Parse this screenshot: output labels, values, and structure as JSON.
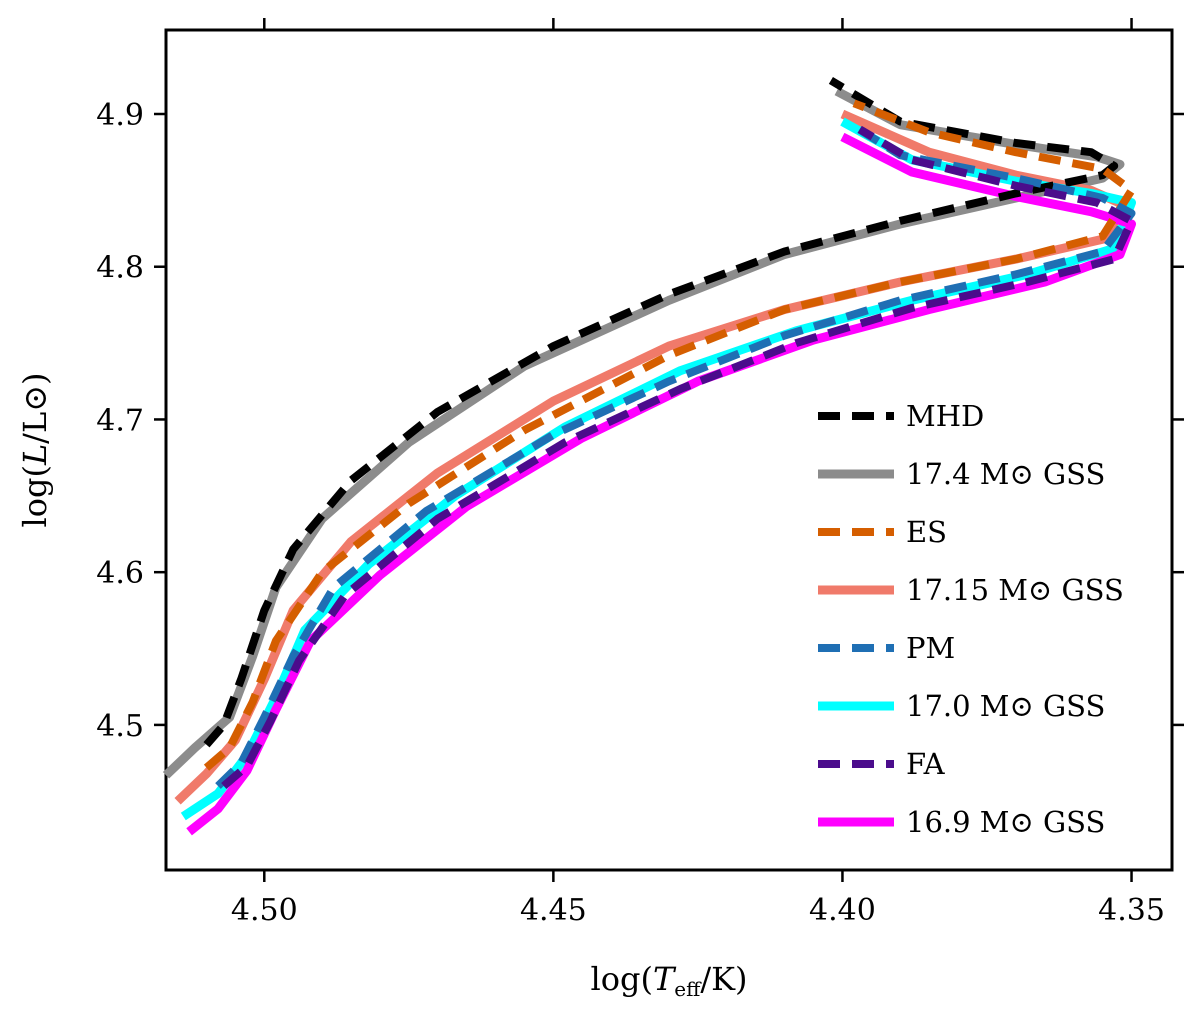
{
  "chart_data": {
    "type": "line",
    "title": "",
    "xlabel_prefix": "log(",
    "xlabel_var": "T",
    "xlabel_sub": "eff",
    "xlabel_suffix": "/K)",
    "ylabel_prefix": "log(",
    "ylabel_var": "L",
    "ylabel_suffix": "/L⊙)",
    "xlim": [
      4.517,
      4.343
    ],
    "ylim": [
      4.405,
      4.955
    ],
    "x_inverted": true,
    "x_ticks": [
      4.5,
      4.45,
      4.4,
      4.35
    ],
    "x_tick_labels": [
      "4.50",
      "4.45",
      "4.40",
      "4.35"
    ],
    "y_ticks": [
      4.5,
      4.6,
      4.7,
      4.8,
      4.9
    ],
    "y_tick_labels": [
      "4.5",
      "4.6",
      "4.7",
      "4.8",
      "4.9"
    ],
    "legend_position": "lower-right",
    "series": [
      {
        "name": "MHD",
        "color": "#000000",
        "style": "dashed",
        "points": [
          [
            4.51,
            4.487
          ],
          [
            4.507,
            4.5
          ],
          [
            4.504,
            4.53
          ],
          [
            4.5,
            4.575
          ],
          [
            4.495,
            4.615
          ],
          [
            4.485,
            4.66
          ],
          [
            4.47,
            4.705
          ],
          [
            4.45,
            4.748
          ],
          [
            4.43,
            4.782
          ],
          [
            4.41,
            4.81
          ],
          [
            4.39,
            4.83
          ],
          [
            4.37,
            4.848
          ],
          [
            4.355,
            4.86
          ],
          [
            4.353,
            4.866
          ],
          [
            4.357,
            4.875
          ],
          [
            4.37,
            4.881
          ],
          [
            4.39,
            4.895
          ],
          [
            4.402,
            4.922
          ]
        ]
      },
      {
        "name": "17.4 M⊙ GSS",
        "color": "#8c8c8c",
        "style": "solid",
        "points": [
          [
            4.517,
            4.467
          ],
          [
            4.512,
            4.485
          ],
          [
            4.506,
            4.505
          ],
          [
            4.502,
            4.545
          ],
          [
            4.498,
            4.59
          ],
          [
            4.49,
            4.635
          ],
          [
            4.475,
            4.685
          ],
          [
            4.455,
            4.735
          ],
          [
            4.43,
            4.778
          ],
          [
            4.41,
            4.808
          ],
          [
            4.39,
            4.828
          ],
          [
            4.37,
            4.845
          ],
          [
            4.355,
            4.858
          ],
          [
            4.352,
            4.867
          ],
          [
            4.356,
            4.872
          ],
          [
            4.37,
            4.88
          ],
          [
            4.39,
            4.893
          ],
          [
            4.401,
            4.915
          ]
        ]
      },
      {
        "name": "ES",
        "color": "#d55e00",
        "style": "dashed",
        "points": [
          [
            4.51,
            4.472
          ],
          [
            4.506,
            4.485
          ],
          [
            4.502,
            4.515
          ],
          [
            4.498,
            4.555
          ],
          [
            4.49,
            4.6
          ],
          [
            4.475,
            4.645
          ],
          [
            4.455,
            4.693
          ],
          [
            4.43,
            4.742
          ],
          [
            4.41,
            4.772
          ],
          [
            4.39,
            4.79
          ],
          [
            4.37,
            4.805
          ],
          [
            4.355,
            4.82
          ],
          [
            4.35,
            4.85
          ],
          [
            4.355,
            4.864
          ],
          [
            4.37,
            4.875
          ],
          [
            4.385,
            4.888
          ],
          [
            4.398,
            4.907
          ]
        ]
      },
      {
        "name": "17.15 M⊙ GSS",
        "color": "#f07a6a",
        "style": "solid",
        "points": [
          [
            4.515,
            4.45
          ],
          [
            4.51,
            4.468
          ],
          [
            4.505,
            4.49
          ],
          [
            4.5,
            4.53
          ],
          [
            4.495,
            4.575
          ],
          [
            4.485,
            4.62
          ],
          [
            4.47,
            4.665
          ],
          [
            4.45,
            4.712
          ],
          [
            4.43,
            4.748
          ],
          [
            4.41,
            4.772
          ],
          [
            4.39,
            4.79
          ],
          [
            4.37,
            4.805
          ],
          [
            4.355,
            4.818
          ],
          [
            4.351,
            4.84
          ],
          [
            4.357,
            4.85
          ],
          [
            4.37,
            4.86
          ],
          [
            4.385,
            4.875
          ],
          [
            4.4,
            4.9
          ]
        ]
      },
      {
        "name": "PM",
        "color": "#1f6fb4",
        "style": "dashed",
        "points": [
          [
            4.508,
            4.46
          ],
          [
            4.504,
            4.475
          ],
          [
            4.5,
            4.505
          ],
          [
            4.495,
            4.545
          ],
          [
            4.488,
            4.59
          ],
          [
            4.472,
            4.64
          ],
          [
            4.45,
            4.69
          ],
          [
            4.43,
            4.725
          ],
          [
            4.41,
            4.755
          ],
          [
            4.39,
            4.778
          ],
          [
            4.37,
            4.795
          ],
          [
            4.355,
            4.81
          ],
          [
            4.35,
            4.835
          ],
          [
            4.355,
            4.845
          ],
          [
            4.37,
            4.858
          ],
          [
            4.39,
            4.873
          ],
          [
            4.398,
            4.892
          ]
        ]
      },
      {
        "name": "17.0 M⊙ GSS",
        "color": "#00ffff",
        "style": "solid",
        "points": [
          [
            4.514,
            4.44
          ],
          [
            4.508,
            4.455
          ],
          [
            4.503,
            4.48
          ],
          [
            4.498,
            4.518
          ],
          [
            4.493,
            4.562
          ],
          [
            4.482,
            4.605
          ],
          [
            4.467,
            4.65
          ],
          [
            4.448,
            4.695
          ],
          [
            4.428,
            4.732
          ],
          [
            4.408,
            4.758
          ],
          [
            4.388,
            4.778
          ],
          [
            4.368,
            4.795
          ],
          [
            4.353,
            4.812
          ],
          [
            4.35,
            4.842
          ],
          [
            4.357,
            4.848
          ],
          [
            4.37,
            4.856
          ],
          [
            4.388,
            4.87
          ],
          [
            4.4,
            4.895
          ]
        ]
      },
      {
        "name": "FA",
        "color": "#4b0c8c",
        "style": "dashed",
        "points": [
          [
            4.507,
            4.46
          ],
          [
            4.503,
            4.473
          ],
          [
            4.499,
            4.502
          ],
          [
            4.494,
            4.542
          ],
          [
            4.486,
            4.585
          ],
          [
            4.47,
            4.635
          ],
          [
            4.448,
            4.685
          ],
          [
            4.428,
            4.72
          ],
          [
            4.408,
            4.75
          ],
          [
            4.388,
            4.773
          ],
          [
            4.368,
            4.79
          ],
          [
            4.353,
            4.805
          ],
          [
            4.35,
            4.83
          ],
          [
            4.356,
            4.842
          ],
          [
            4.37,
            4.853
          ],
          [
            4.388,
            4.87
          ],
          [
            4.397,
            4.89
          ]
        ]
      },
      {
        "name": "16.9 M⊙ GSS",
        "color": "#ff00ff",
        "style": "solid",
        "points": [
          [
            4.513,
            4.43
          ],
          [
            4.508,
            4.445
          ],
          [
            4.503,
            4.47
          ],
          [
            4.498,
            4.51
          ],
          [
            4.492,
            4.555
          ],
          [
            4.48,
            4.598
          ],
          [
            4.465,
            4.643
          ],
          [
            4.445,
            4.688
          ],
          [
            4.425,
            4.725
          ],
          [
            4.405,
            4.752
          ],
          [
            4.385,
            4.772
          ],
          [
            4.365,
            4.79
          ],
          [
            4.352,
            4.808
          ],
          [
            4.35,
            4.828
          ],
          [
            4.357,
            4.836
          ],
          [
            4.37,
            4.846
          ],
          [
            4.388,
            4.862
          ],
          [
            4.4,
            4.885
          ]
        ]
      }
    ]
  }
}
